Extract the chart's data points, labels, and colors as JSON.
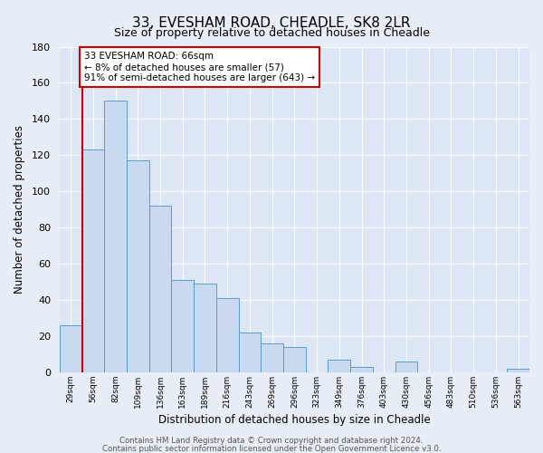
{
  "title": "33, EVESHAM ROAD, CHEADLE, SK8 2LR",
  "subtitle": "Size of property relative to detached houses in Cheadle",
  "xlabel": "Distribution of detached houses by size in Cheadle",
  "ylabel": "Number of detached properties",
  "bar_labels": [
    "29sqm",
    "56sqm",
    "82sqm",
    "109sqm",
    "136sqm",
    "163sqm",
    "189sqm",
    "216sqm",
    "243sqm",
    "269sqm",
    "296sqm",
    "323sqm",
    "349sqm",
    "376sqm",
    "403sqm",
    "430sqm",
    "456sqm",
    "483sqm",
    "510sqm",
    "536sqm",
    "563sqm"
  ],
  "bar_values": [
    26,
    123,
    150,
    117,
    92,
    51,
    49,
    41,
    22,
    16,
    14,
    0,
    7,
    3,
    0,
    6,
    0,
    0,
    0,
    0,
    2
  ],
  "bar_color": "#c9d9ef",
  "bar_edge_color": "#5b9bd5",
  "ylim": [
    0,
    180
  ],
  "yticks": [
    0,
    20,
    40,
    60,
    80,
    100,
    120,
    140,
    160,
    180
  ],
  "property_line_x": 0.5,
  "property_line_color": "#cc0000",
  "annotation_title": "33 EVESHAM ROAD: 66sqm",
  "annotation_line1": "← 8% of detached houses are smaller (57)",
  "annotation_line2": "91% of semi-detached houses are larger (643) →",
  "annotation_box_color": "#ffffff",
  "annotation_box_edge_color": "#cc0000",
  "footer1": "Contains HM Land Registry data © Crown copyright and database right 2024.",
  "footer2": "Contains public sector information licensed under the Open Government Licence v3.0.",
  "background_color": "#e8eef7",
  "plot_background_color": "#dce6f5",
  "grid_color": "#ffffff",
  "title_fontsize": 11,
  "subtitle_fontsize": 9
}
